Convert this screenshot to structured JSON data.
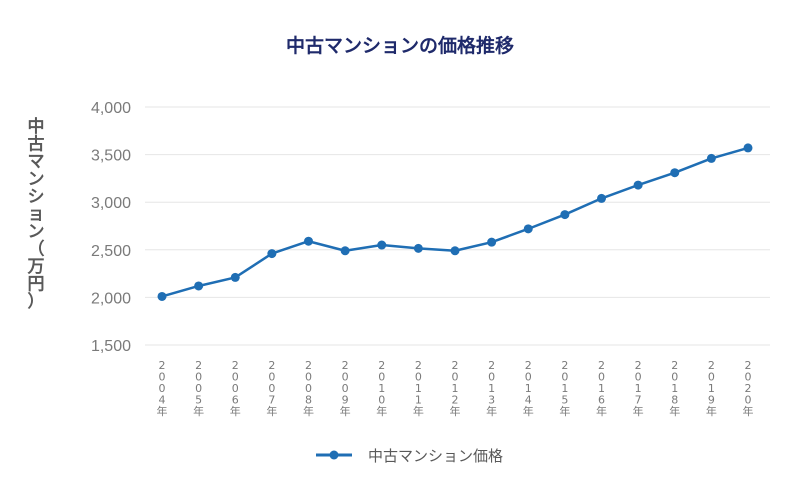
{
  "chart_data": {
    "type": "line",
    "title": "中古マンションの価格推移",
    "xlabel": "",
    "ylabel": "中古マンション（万円）",
    "categories": [
      "2004年",
      "2005年",
      "2006年",
      "2007年",
      "2008年",
      "2009年",
      "2010年",
      "2011年",
      "2012年",
      "2013年",
      "2014年",
      "2015年",
      "2016年",
      "2017年",
      "2018年",
      "2019年",
      "2020年"
    ],
    "series": [
      {
        "name": "中古マンション価格",
        "values": [
          2010,
          2120,
          2210,
          2460,
          2590,
          2490,
          2550,
          2515,
          2490,
          2580,
          2720,
          2870,
          3040,
          3180,
          3310,
          3460,
          3570
        ]
      }
    ],
    "ylim": [
      1500,
      4000
    ],
    "yticks": [
      1500,
      2000,
      2500,
      3000,
      3500,
      4000
    ],
    "ytick_labels": [
      "1,500",
      "2,000",
      "2,500",
      "3,000",
      "3,500",
      "4,000"
    ],
    "grid": true,
    "legend_position": "bottom",
    "line_color": "#1f6eb4",
    "title_color": "#1f2a6b"
  }
}
